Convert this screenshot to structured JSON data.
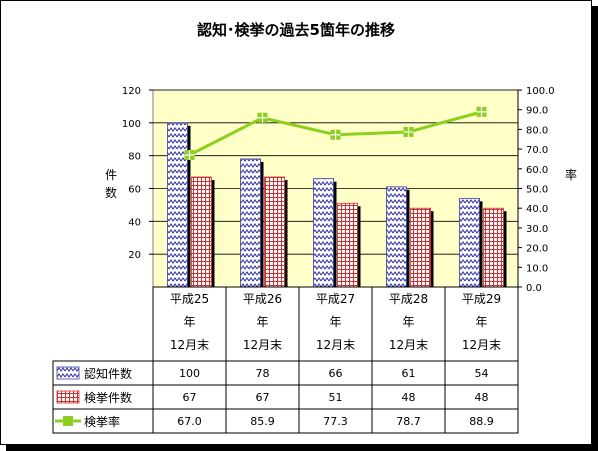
{
  "chart_data": {
    "type": "bar",
    "title": "認知･検挙の過去5箇年の推移",
    "categories": [
      [
        "平成25",
        "年",
        "12月末"
      ],
      [
        "平成26",
        "年",
        "12月末"
      ],
      [
        "平成27",
        "年",
        "12月末"
      ],
      [
        "平成28",
        "年",
        "12月末"
      ],
      [
        "平成29",
        "年",
        "12月末"
      ]
    ],
    "ylabel": [
      "件",
      "数"
    ],
    "y2label": "率",
    "ylim": [
      0,
      120
    ],
    "y2lim": [
      0,
      100
    ],
    "y_ticks": [
      "20",
      "40",
      "60",
      "80",
      "100",
      "120"
    ],
    "y2_ticks": [
      "0.0",
      "10.0",
      "20.0",
      "30.0",
      "40.0",
      "50.0",
      "60.0",
      "70.0",
      "80.0",
      "90.0",
      "100.0"
    ],
    "grid": true,
    "series": [
      {
        "name": "認知件数",
        "kind": "bar",
        "axis": "left",
        "color": "#3b3ba8",
        "values": [
          100,
          78,
          66,
          61,
          54
        ],
        "labels": [
          "100",
          "78",
          "66",
          "61",
          "54"
        ]
      },
      {
        "name": "検挙件数",
        "kind": "bar",
        "axis": "left",
        "color": "#d03030",
        "values": [
          67,
          67,
          51,
          48,
          48
        ],
        "labels": [
          "67",
          "67",
          "51",
          "48",
          "48"
        ]
      },
      {
        "name": "検挙率",
        "kind": "line",
        "axis": "right",
        "color": "#8ccf1e",
        "values": [
          67.0,
          85.9,
          77.3,
          78.7,
          88.9
        ],
        "labels": [
          "67.0",
          "85.9",
          "77.3",
          "78.7",
          "88.9"
        ]
      }
    ],
    "colors": {
      "plot_bg": "#ffffc8",
      "gridline": "#000000"
    }
  }
}
